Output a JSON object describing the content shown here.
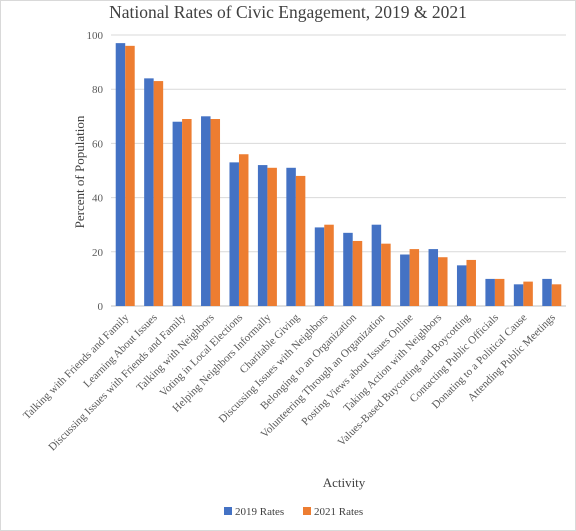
{
  "chart_data": {
    "type": "bar",
    "title": "National Rates of Civic Engagement, 2019 & 2021",
    "xlabel": "Activity",
    "ylabel": "Percent of Population",
    "ylim": [
      0,
      100
    ],
    "yticks": [
      0,
      20,
      40,
      60,
      80,
      100
    ],
    "grid": true,
    "legend_position": "bottom",
    "categories": [
      "Talking with Friends and Family",
      "Learning About Issues",
      "Discussing Issues with Friends and Family",
      "Talking with Neighbors",
      "Voting in Local Elections",
      "Helping Neighbors Informally",
      "Charitable Giving",
      "Discussing Issues with Neighbors",
      "Belonging to an Organization",
      "Volunteering Through an Organization",
      "Posting Views about Issues Online",
      "Taking Action with Neighbors",
      "Values-Based Buycotting and Boycotting",
      "Contacting Public Officials",
      "Donating to a Political Cause",
      "Attending Public Meetings"
    ],
    "series": [
      {
        "name": "2019 Rates",
        "color": "#4472c4",
        "values": [
          97,
          84,
          68,
          70,
          53,
          52,
          51,
          29,
          27,
          30,
          19,
          21,
          15,
          10,
          8,
          10
        ]
      },
      {
        "name": "2021 Rates",
        "color": "#ed7d31",
        "values": [
          96,
          83,
          69,
          69,
          56,
          51,
          48,
          30,
          24,
          23,
          21,
          18,
          17,
          10,
          9,
          8
        ]
      }
    ]
  }
}
